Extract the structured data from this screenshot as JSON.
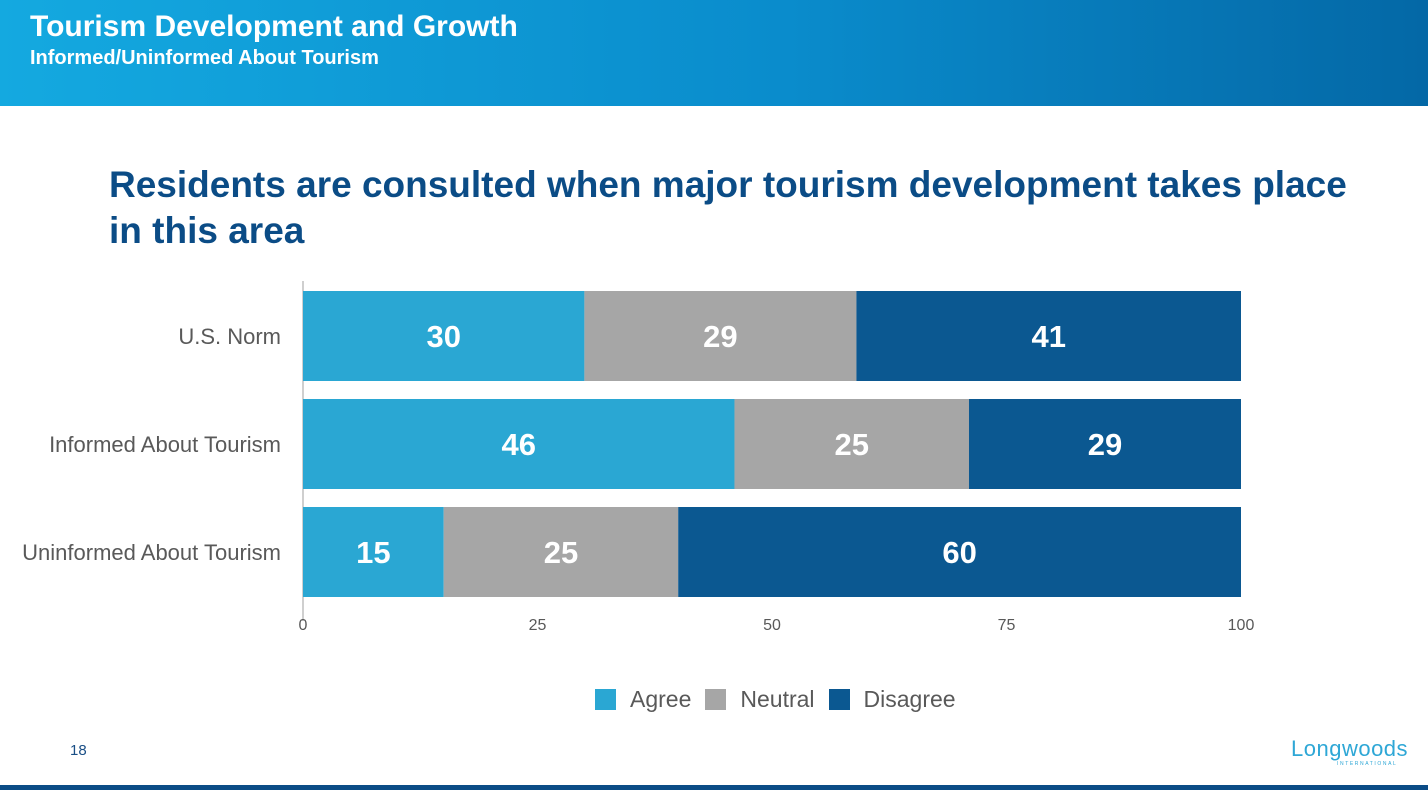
{
  "header": {
    "title": "Tourism Development and Growth",
    "subtitle": "Informed/Uninformed About Tourism"
  },
  "page_number": "18",
  "logo": {
    "text": "Longwoods",
    "subtext": "INTERNATIONAL"
  },
  "colors": {
    "agree": "#2aa7d3",
    "neutral": "#a6a6a6",
    "disagree": "#0b5891",
    "title": "#0b4c86"
  },
  "chart_data": {
    "type": "bar",
    "orientation": "horizontal",
    "stacked": true,
    "title": "Residents are consulted when major tourism development takes place in this area",
    "categories": [
      "U.S. Norm",
      "Informed About Tourism",
      "Uninformed About Tourism"
    ],
    "series": [
      {
        "name": "Agree",
        "values": [
          30,
          46,
          15
        ]
      },
      {
        "name": "Neutral",
        "values": [
          29,
          25,
          25
        ]
      },
      {
        "name": "Disagree",
        "values": [
          41,
          29,
          60
        ]
      }
    ],
    "xlim": [
      0,
      100
    ],
    "xticks": [
      0,
      25,
      50,
      75,
      100
    ],
    "grid": false,
    "legend": "bottom",
    "data_labels": true
  }
}
